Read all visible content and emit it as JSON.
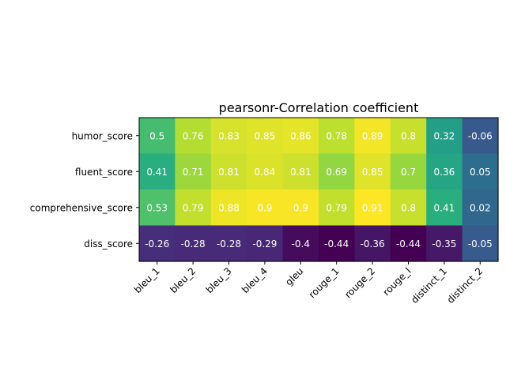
{
  "chart_data": {
    "type": "heatmap",
    "title": "pearsonr-Correlation coefficient",
    "xlabel": "",
    "ylabel": "",
    "x_categories": [
      "bleu_1",
      "bleu_2",
      "bleu_3",
      "bleu_4",
      "gleu",
      "rouge_1",
      "rouge_2",
      "rouge_l",
      "distinct_1",
      "distinct_2"
    ],
    "y_categories": [
      "humor_score",
      "fluent_score",
      "comprehensive_score",
      "diss_score"
    ],
    "values": [
      [
        0.5,
        0.76,
        0.83,
        0.85,
        0.86,
        0.78,
        0.89,
        0.8,
        0.32,
        -0.06
      ],
      [
        0.41,
        0.71,
        0.81,
        0.84,
        0.81,
        0.69,
        0.85,
        0.7,
        0.36,
        0.05
      ],
      [
        0.53,
        0.79,
        0.88,
        0.9,
        0.9,
        0.79,
        0.91,
        0.8,
        0.41,
        0.02
      ],
      [
        -0.26,
        -0.28,
        -0.28,
        -0.29,
        -0.4,
        -0.44,
        -0.36,
        -0.44,
        -0.35,
        -0.05
      ]
    ],
    "colormap": "viridis",
    "color_range": [
      -0.44,
      0.91
    ],
    "cell_annotation_color": "#ffffff",
    "grid": false,
    "xtick_rotation": 45
  }
}
